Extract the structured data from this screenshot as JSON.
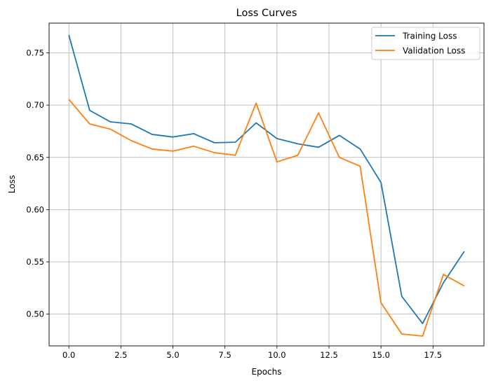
{
  "chart_data": {
    "type": "line",
    "title": "Loss Curves",
    "xlabel": "Epochs",
    "ylabel": "Loss",
    "xlim": [
      -0.95,
      19.95
    ],
    "ylim": [
      0.4696,
      0.7785
    ],
    "xticks": [
      0.0,
      2.5,
      5.0,
      7.5,
      10.0,
      12.5,
      15.0,
      17.5
    ],
    "xtick_labels": [
      "0.0",
      "2.5",
      "5.0",
      "7.5",
      "10.0",
      "12.5",
      "15.0",
      "17.5"
    ],
    "yticks": [
      0.5,
      0.55,
      0.6,
      0.65,
      0.7,
      0.75
    ],
    "ytick_labels": [
      "0.50",
      "0.55",
      "0.60",
      "0.65",
      "0.70",
      "0.75"
    ],
    "grid": true,
    "legend_position": "top-right",
    "x": [
      0,
      1,
      2,
      3,
      4,
      5,
      6,
      7,
      8,
      9,
      10,
      11,
      12,
      13,
      14,
      15,
      16,
      17,
      18,
      19
    ],
    "series": [
      {
        "name": "Training Loss",
        "color": "#1f77b4",
        "values": [
          0.767,
          0.695,
          0.684,
          0.682,
          0.672,
          0.6695,
          0.6727,
          0.664,
          0.6645,
          0.683,
          0.668,
          0.663,
          0.6597,
          0.671,
          0.658,
          0.626,
          0.517,
          0.491,
          0.53,
          0.56
        ]
      },
      {
        "name": "Validation Loss",
        "color": "#ff7f0e",
        "values": [
          0.7055,
          0.682,
          0.677,
          0.666,
          0.658,
          0.656,
          0.6607,
          0.6545,
          0.652,
          0.702,
          0.6457,
          0.652,
          0.6925,
          0.65,
          0.6415,
          0.511,
          0.481,
          0.479,
          0.538,
          0.527
        ]
      }
    ]
  }
}
